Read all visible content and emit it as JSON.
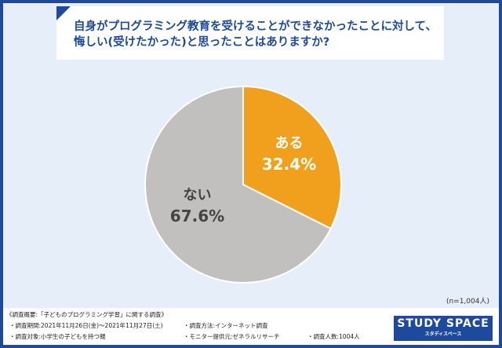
{
  "title": {
    "line1": "自身がプログラミング教育を受けることができなかったことに対して、",
    "line2": "悔しい(受けたかった)と思ったことはありますか?"
  },
  "chart_data": {
    "type": "pie",
    "title": "自身がプログラミング教育を受けることができなかったことに対して、悔しい(受けたかった)と思ったことはありますか?",
    "slices": [
      {
        "label": "ある",
        "value": 32.4,
        "display": "32.4%",
        "color": "#f0a01c"
      },
      {
        "label": "ない",
        "value": 67.6,
        "display": "67.6%",
        "color": "#c2c0bf"
      }
    ]
  },
  "sample": "(n=1,004人)",
  "footer": {
    "heading": "《調査概要:「子どものプログラミング学習」に関する調査》",
    "period": "・調査期間:2021年11月26日(金)〜2021年11月27日(土)",
    "method": "・調査方法:インターネット調査",
    "target": "・調査対象:小学生の子どもを持つ親",
    "provider": "・モニター提供元:ゼネラルリサーチ",
    "count": "・調査人数:1004人"
  },
  "logo": {
    "name": "STUDY SPACE",
    "kana": "スタディスペース"
  }
}
